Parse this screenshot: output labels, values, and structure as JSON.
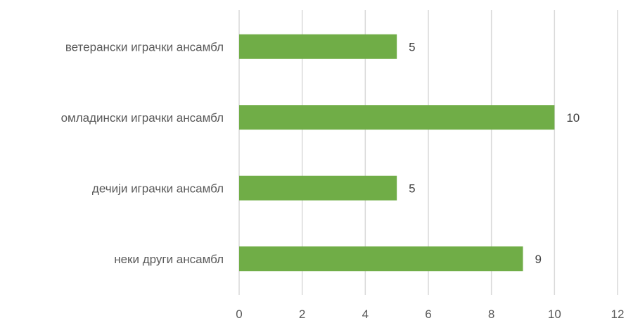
{
  "chart_data": {
    "type": "bar",
    "orientation": "horizontal",
    "categories": [
      "ветерански играчки ансамбл",
      "омладински играчки ансамбл",
      "дечији играчки ансамбл",
      "неки други ансамбл"
    ],
    "values": [
      5,
      10,
      5,
      9
    ],
    "xlim": [
      0,
      12
    ],
    "xticks": [
      0,
      2,
      4,
      6,
      8,
      10,
      12
    ],
    "grid": true,
    "legend": false,
    "data_labels": true,
    "colors": {
      "bar": "#70AD47",
      "grid": "#D9D9D9",
      "text": "#595959"
    }
  }
}
